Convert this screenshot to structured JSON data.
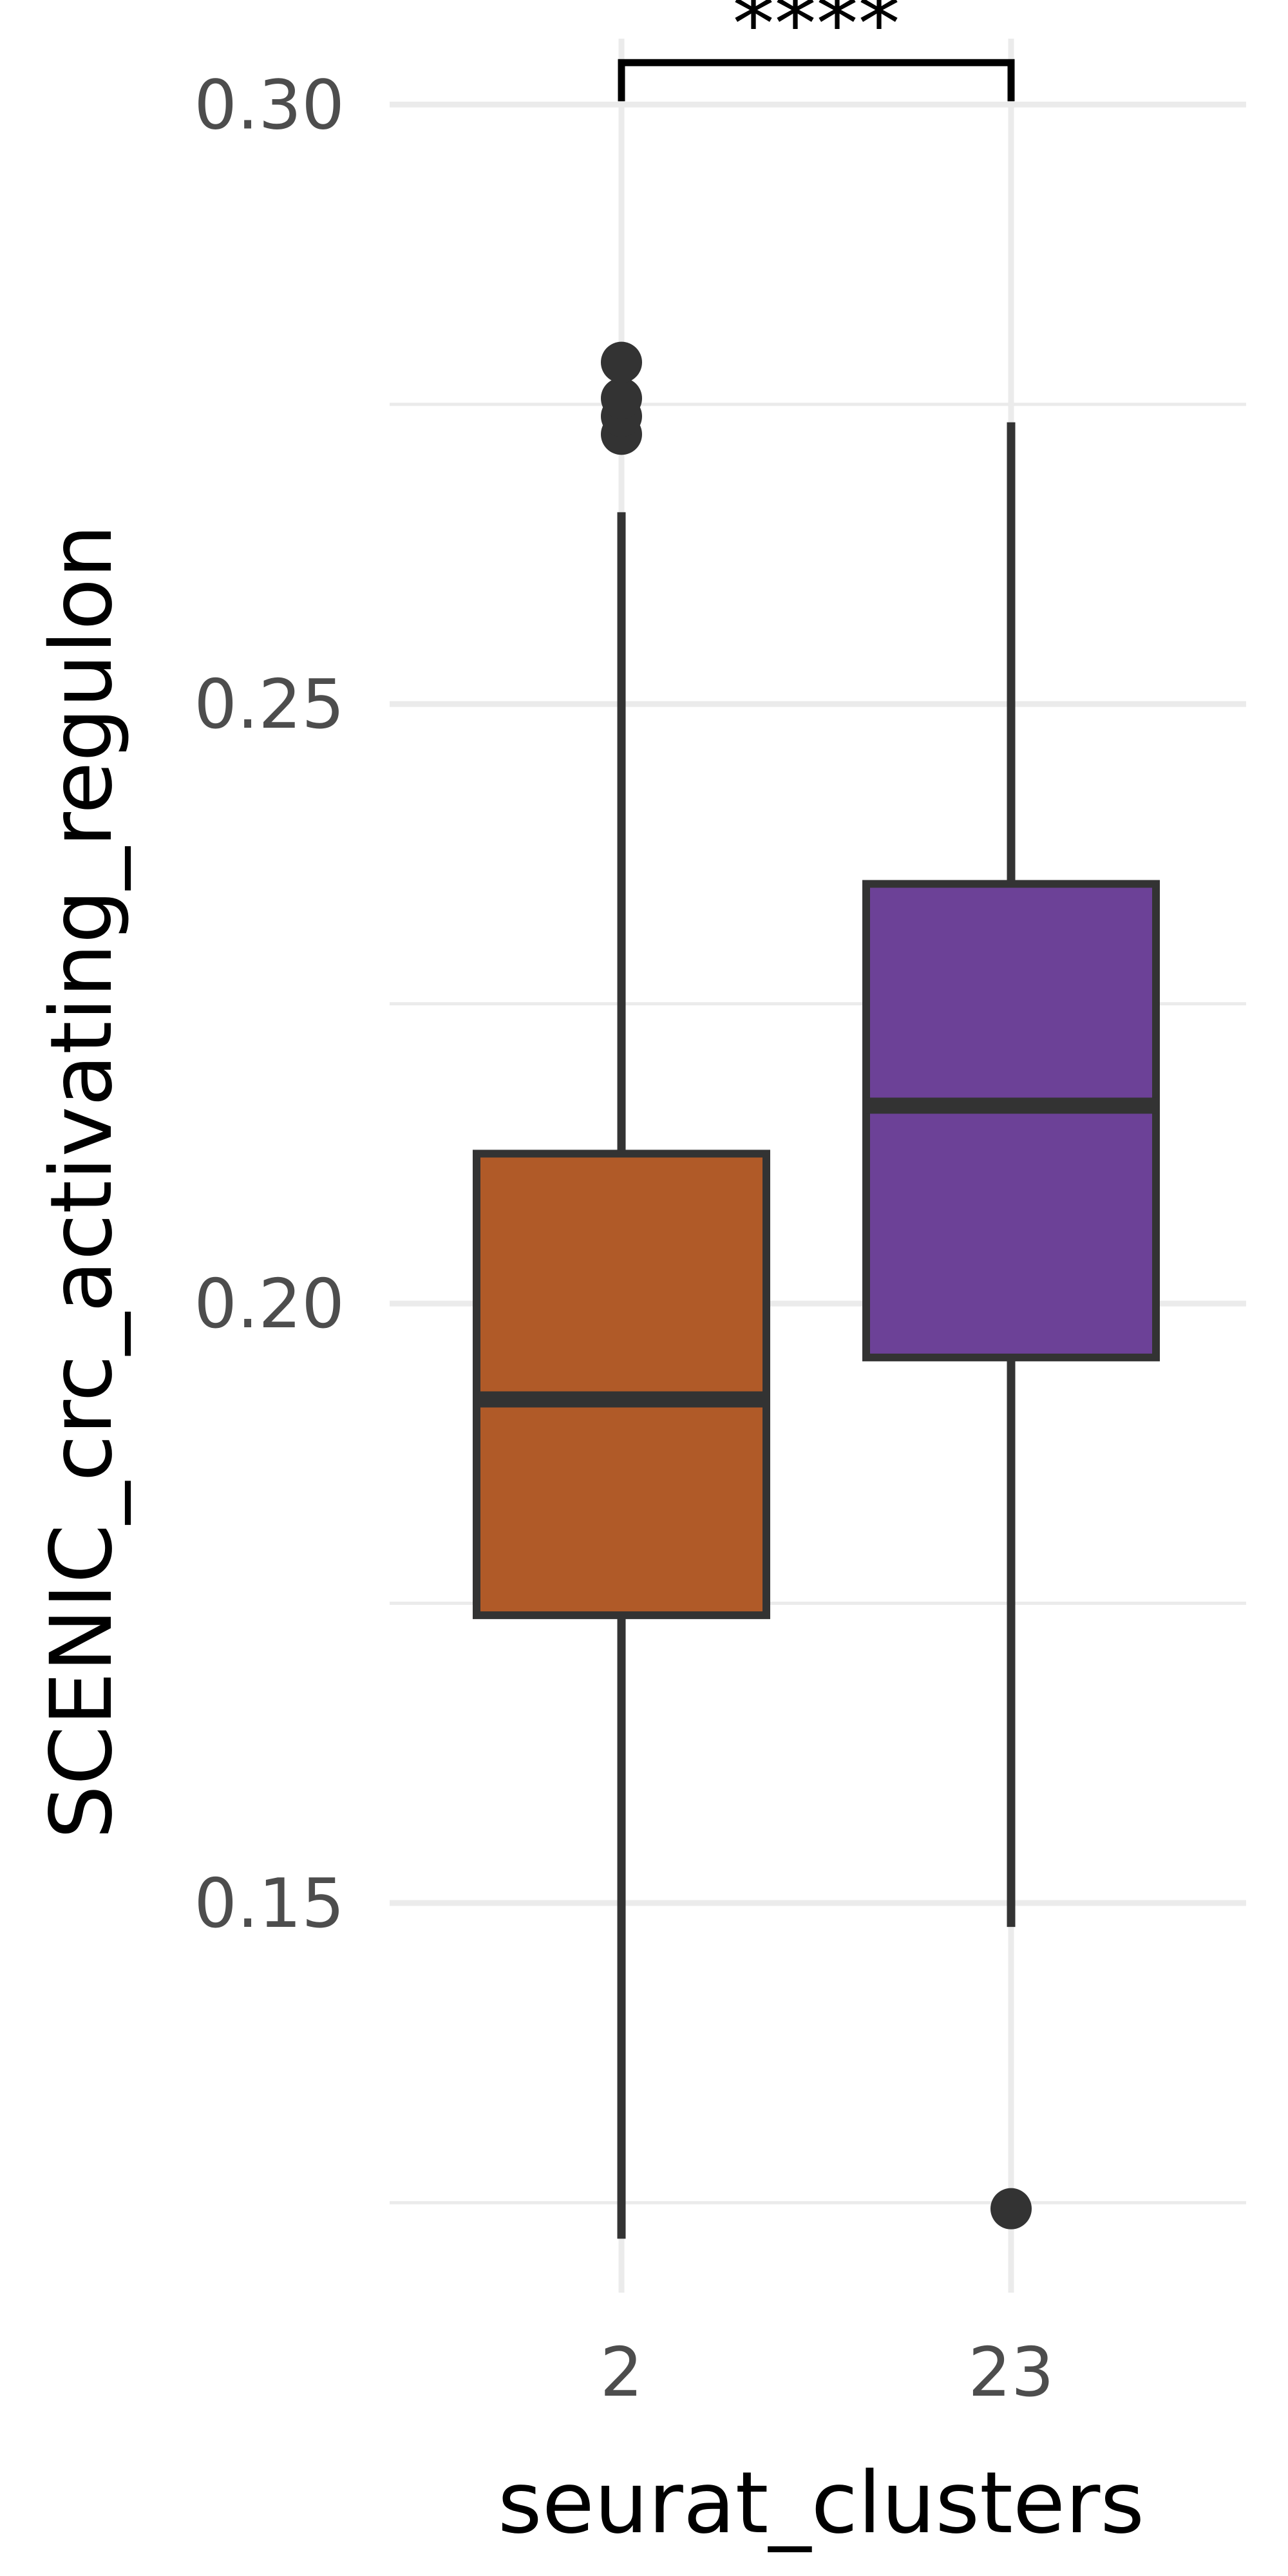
{
  "chart_data": {
    "type": "boxplot",
    "xlabel": "seurat_clusters",
    "ylabel": "SCENIC_crc_activating_regulon",
    "categories": [
      "2",
      "23"
    ],
    "ylim": [
      0.1175,
      0.3055
    ],
    "yticks": [
      0.15,
      0.2,
      0.25,
      0.3
    ],
    "ytick_labels": [
      "0.15",
      "0.20",
      "0.25",
      "0.30"
    ],
    "grid": true,
    "boxes": [
      {
        "category": "2",
        "color": "#b05a28",
        "whisker_low": 0.122,
        "q1": 0.174,
        "median": 0.192,
        "q3": 0.2125,
        "whisker_high": 0.266,
        "outliers": [
          0.2725,
          0.274,
          0.2755,
          0.2785
        ]
      },
      {
        "category": "23",
        "color": "#6c4197",
        "whisker_low": 0.148,
        "q1": 0.1955,
        "median": 0.2165,
        "q3": 0.235,
        "whisker_high": 0.2735,
        "outliers": [
          0.1245
        ]
      }
    ],
    "comparisons": [
      {
        "groups": [
          "2",
          "23"
        ],
        "label": "****",
        "y": 0.3035
      }
    ]
  }
}
